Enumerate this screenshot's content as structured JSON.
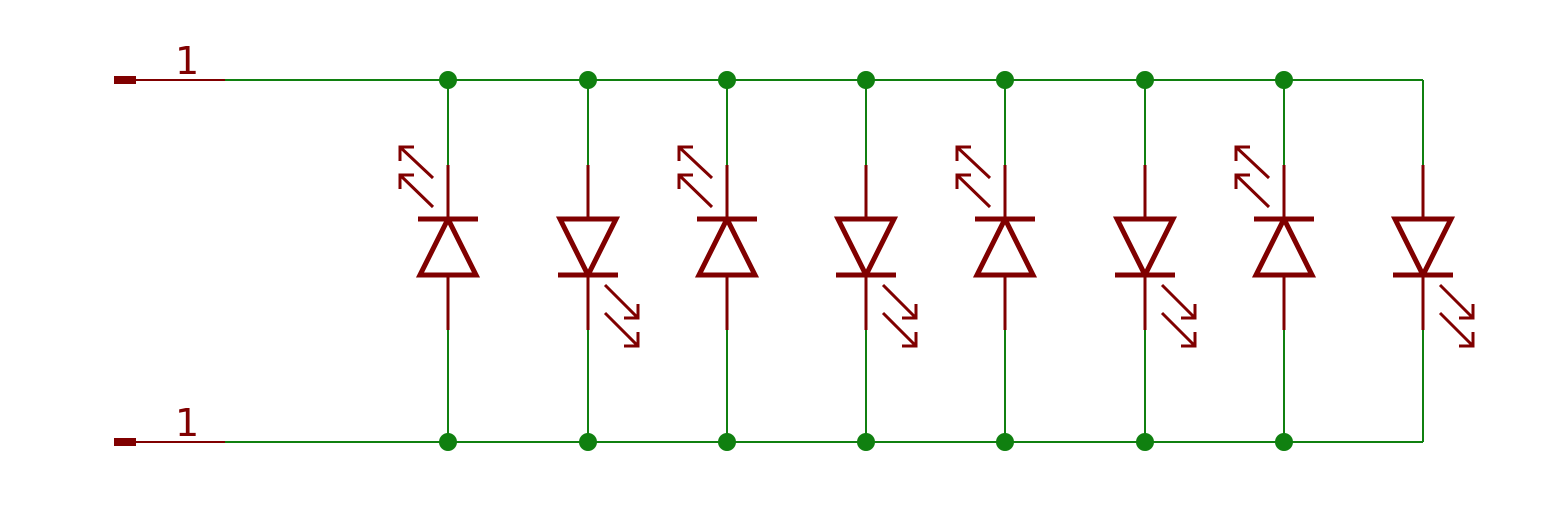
{
  "colors": {
    "wire": "#108010",
    "symbol": "#800000",
    "background": "#ffffff"
  },
  "ports": [
    {
      "name": "top",
      "pin_label": "1"
    },
    {
      "name": "bottom",
      "pin_label": "1"
    }
  ],
  "leds": [
    {
      "index": 1,
      "orientation": "anode-bottom",
      "emission": "upper-left"
    },
    {
      "index": 2,
      "orientation": "anode-top",
      "emission": "lower-right"
    },
    {
      "index": 3,
      "orientation": "anode-bottom",
      "emission": "upper-left"
    },
    {
      "index": 4,
      "orientation": "anode-top",
      "emission": "lower-right"
    },
    {
      "index": 5,
      "orientation": "anode-bottom",
      "emission": "upper-left"
    },
    {
      "index": 6,
      "orientation": "anode-top",
      "emission": "lower-right"
    },
    {
      "index": 7,
      "orientation": "anode-bottom",
      "emission": "upper-left"
    },
    {
      "index": 8,
      "orientation": "anode-top",
      "emission": "lower-right"
    }
  ],
  "junction_count_per_rail": 7
}
